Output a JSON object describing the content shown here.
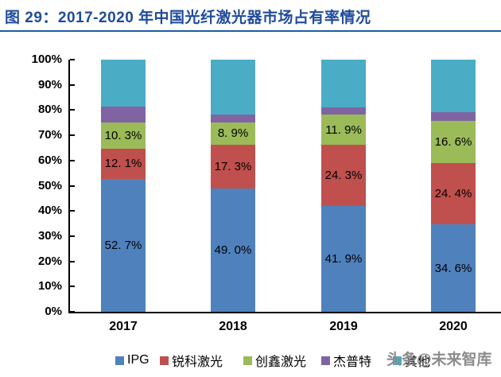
{
  "title": {
    "text": "图 29：2017-2020 年中国光纤激光器市场占有率情况"
  },
  "watermark": {
    "text": "头条@未来智库"
  },
  "colors": {
    "title": "#1F4B9B",
    "divider": "#1C5CA7",
    "axis": "#000000",
    "watermark": "#8C8C8C"
  },
  "chart_data": {
    "type": "bar",
    "variant": "stacked-100-percent",
    "title": "图 29：2017-2020 年中国光纤激光器市场占有率情况",
    "categories": [
      "2017",
      "2018",
      "2019",
      "2020"
    ],
    "series": [
      {
        "key": "ipg",
        "name": "IPG",
        "color": "#4F81BD",
        "values": [
          52.7,
          49.0,
          41.9,
          34.6
        ],
        "data_labels": [
          "52. 7%",
          "49. 0%",
          "41. 9%",
          "34. 6%"
        ]
      },
      {
        "key": "raycus",
        "name": "锐科激光",
        "color": "#C0504D",
        "values": [
          12.1,
          17.3,
          24.3,
          24.4
        ],
        "data_labels": [
          "12. 1%",
          "17. 3%",
          "24. 3%",
          "24. 4%"
        ]
      },
      {
        "key": "maxphotonics",
        "name": "创鑫激光",
        "color": "#9BBB59",
        "values": [
          10.3,
          8.9,
          11.9,
          16.6
        ],
        "data_labels": [
          "10. 3%",
          "8. 9%",
          "11. 9%",
          "16. 6%"
        ]
      },
      {
        "key": "jpt",
        "name": "杰普特",
        "color": "#8064A2",
        "values": [
          6.2,
          2.9,
          3.0,
          3.5
        ],
        "data_labels": [
          "",
          "",
          "",
          ""
        ]
      },
      {
        "key": "others",
        "name": "其他",
        "color": "#4BACC6",
        "values": [
          18.7,
          21.9,
          18.9,
          20.9
        ],
        "data_labels": [
          "",
          "",
          "",
          ""
        ]
      }
    ],
    "xlabel": "",
    "ylabel": "",
    "ylim": [
      0,
      100
    ],
    "yticks": [
      "0%",
      "10%",
      "20%",
      "30%",
      "40%",
      "50%",
      "60%",
      "70%",
      "80%",
      "90%",
      "100%"
    ],
    "grid": false,
    "legend_position": "bottom"
  }
}
